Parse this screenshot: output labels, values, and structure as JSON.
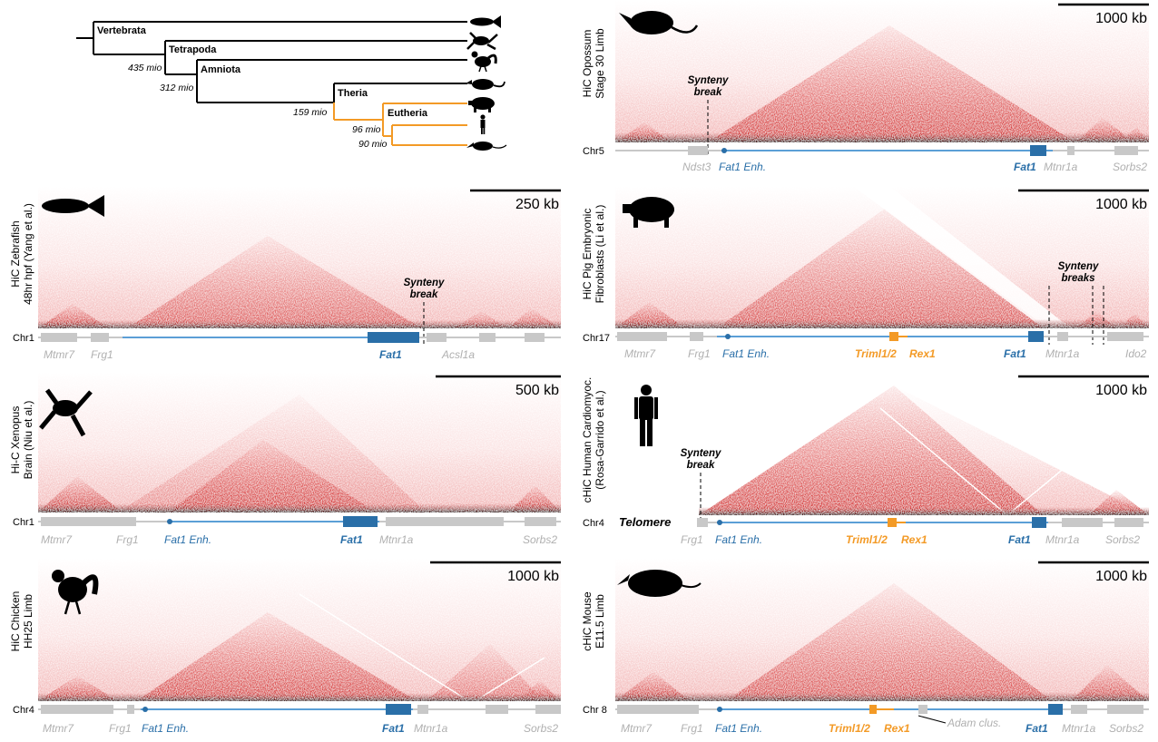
{
  "colors": {
    "hic_red": "#d21f1f",
    "fat1_blue": "#2a6fa8",
    "line_blue": "#5b9fd6",
    "orange": "#f39a26",
    "grey_gene": "#c8c8c8",
    "grey_text": "#b0b0b0"
  },
  "tree": {
    "clades": [
      "Vertebrata",
      "Tetrapoda",
      "Amniota",
      "Theria",
      "Eutheria"
    ],
    "times": [
      "435 mio",
      "312 mio",
      "159 mio",
      "96 mio",
      "90 mio"
    ],
    "silhouettes": [
      "fish-icon",
      "frog-icon",
      "chicken-icon",
      "opossum-icon",
      "pig-icon",
      "human-icon",
      "mouse-icon"
    ]
  },
  "panels": {
    "opossum": {
      "ylabel": [
        "HiC Opossum",
        "Stage 30 Limb"
      ],
      "scale": "1000 kb",
      "chr": "Chr5",
      "synteny": [
        "Synteny",
        "break"
      ],
      "genes": [
        "Ndst3",
        "Fat1 Enh.",
        "Fat1",
        "Mtnr1a",
        "Sorbs2"
      ]
    },
    "zebrafish": {
      "ylabel": [
        "HiC Zebrafish",
        "48hr hpf (Yang et al.)"
      ],
      "scale": "250 kb",
      "chr": "Chr1",
      "synteny": [
        "Synteny",
        "break"
      ],
      "genes": [
        "Mtmr7",
        "Frg1",
        "Fat1",
        "Acsl1a"
      ]
    },
    "pig": {
      "ylabel": [
        "HiC Pig Embryonic",
        "Fibroblasts (Li et al.)"
      ],
      "scale": "1000 kb",
      "chr": "Chr17",
      "synteny": [
        "Synteny",
        "breaks"
      ],
      "genes": [
        "Mtmr7",
        "Frg1",
        "Fat1 Enh.",
        "Triml1/2",
        "Rex1",
        "Fat1",
        "Mtnr1a",
        "Ido2"
      ]
    },
    "xenopus": {
      "ylabel": [
        "Hi-C Xenopus",
        "Brain (Niu et al.)"
      ],
      "scale": "500 kb",
      "chr": "Chr1",
      "genes": [
        "Mtmr7",
        "Frg1",
        "Fat1 Enh.",
        "Fat1",
        "Mtnr1a",
        "Sorbs2"
      ]
    },
    "human": {
      "ylabel": [
        "cHiC Human Cardiomyoc.",
        "(Rosa-Garrido et al.)"
      ],
      "scale": "1000 kb",
      "chr": "Chr4",
      "synteny": [
        "Synteny",
        "break"
      ],
      "telomere": "Telomere",
      "genes": [
        "Frg1",
        "Fat1 Enh.",
        "Triml1/2",
        "Rex1",
        "Fat1",
        "Mtnr1a",
        "Sorbs2"
      ]
    },
    "chicken": {
      "ylabel": [
        "HiC Chicken",
        "HH25 Limb"
      ],
      "scale": "1000 kb",
      "chr": "Chr4",
      "genes": [
        "Mtmr7",
        "Frg1",
        "Fat1 Enh.",
        "Fat1",
        "Mtnr1a",
        "Sorbs2"
      ]
    },
    "mouse": {
      "ylabel": [
        "cHiC Mouse",
        "E11.5 Limb"
      ],
      "scale": "1000 kb",
      "chr": "Chr 8",
      "genes": [
        "Mtmr7",
        "Frg1",
        "Fat1 Enh.",
        "Triml1/2",
        "Rex1",
        "Adam clus.",
        "Fat1",
        "Mtnr1a",
        "Sorbs2"
      ]
    }
  }
}
